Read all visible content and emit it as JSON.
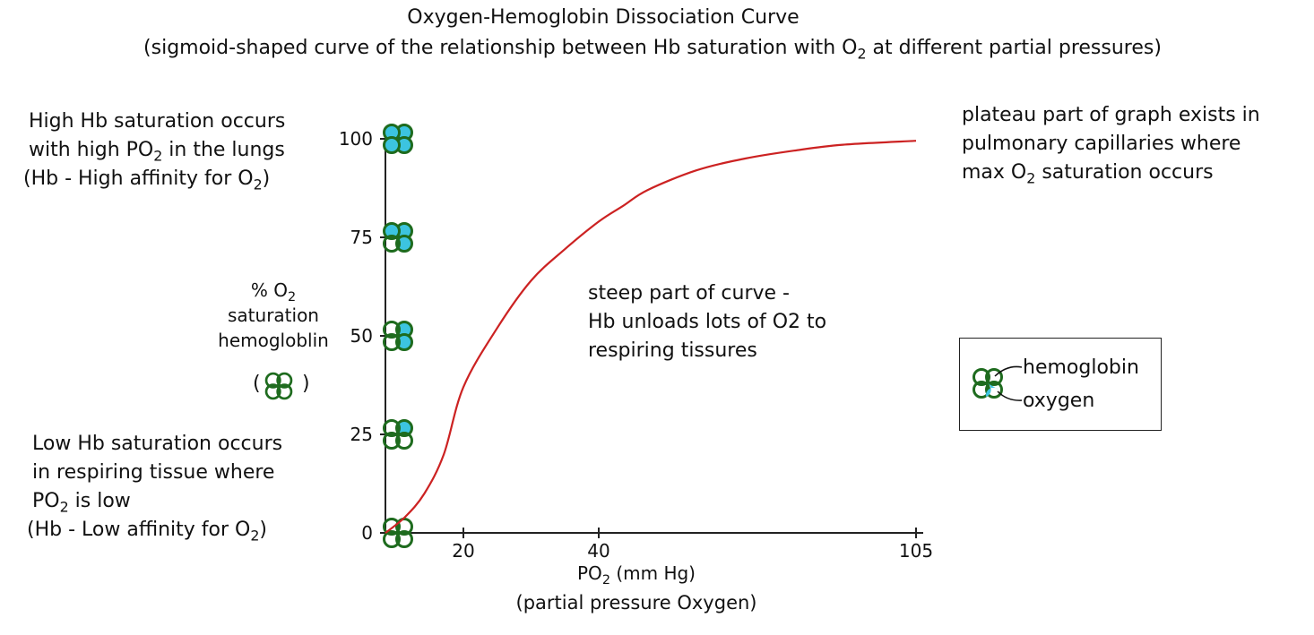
{
  "chart_data": {
    "type": "line",
    "title": "Oxygen-Hemoglobin Dissociation Curve",
    "subtitle_pre": "(sigmoid-shaped curve of the relationship between Hb saturation with O",
    "subtitle_sub": "2",
    "subtitle_post": " at different partial pressures)",
    "xlabel_pre": "PO",
    "xlabel_sub": "2",
    "xlabel_post": " (mm Hg)",
    "xlabel_note": "(partial pressure Oxygen)",
    "ylabel_line1_pre": "% O",
    "ylabel_line1_sub": "2",
    "ylabel_line2": "saturation",
    "ylabel_line3": "hemogloblin",
    "ylabel_paren_open": "(",
    "ylabel_paren_close": ")",
    "x_ticks": [
      "20",
      "40",
      "105"
    ],
    "y_ticks": [
      "0",
      "25",
      "50",
      "75",
      "100"
    ],
    "ylim": [
      0,
      100
    ],
    "series": [
      {
        "color": "#cc2222",
        "x": [
          0,
          5,
          10,
          15,
          20,
          25,
          30,
          35,
          40,
          45,
          50,
          60,
          70,
          80,
          90,
          105
        ],
        "y": [
          0,
          4,
          10,
          20,
          37,
          52,
          64,
          72,
          79,
          83,
          87,
          92,
          95,
          97,
          98.5,
          99.5
        ]
      }
    ]
  },
  "annotations": {
    "high_line1": "High Hb saturation occurs",
    "high_line2_pre": "with high PO",
    "high_line2_sub": "2",
    "high_line2_post": " in the lungs",
    "high_line3_pre": "(Hb - High affinity for O",
    "high_line3_sub": "2",
    "high_line3_post": ")",
    "low_line1": "Low Hb saturation occurs",
    "low_line2": "in respiring tissue where",
    "low_line3_pre": "PO",
    "low_line3_sub": "2",
    "low_line3_post": " is low",
    "low_line4_pre": "(Hb - Low affinity for O",
    "low_line4_sub": "2",
    "low_line4_post": ")",
    "steep_line1": "steep part of curve -",
    "steep_line2": "Hb unloads lots of O2 to",
    "steep_line3": "respiring tissures",
    "plateau_line1": "plateau part of graph exists in",
    "plateau_line2": "pulmonary capillaries where",
    "plateau_line3_pre": "max O",
    "plateau_line3_sub": "2",
    "plateau_line3_post": "  saturation occurs"
  },
  "legend": {
    "hemoglobin": "hemoglobin",
    "oxygen": "oxygen"
  },
  "colors": {
    "hemoglobin_outline": "#1e6b1e",
    "oxygen_fill": "#3cc4e0",
    "curve": "#cc2222"
  }
}
